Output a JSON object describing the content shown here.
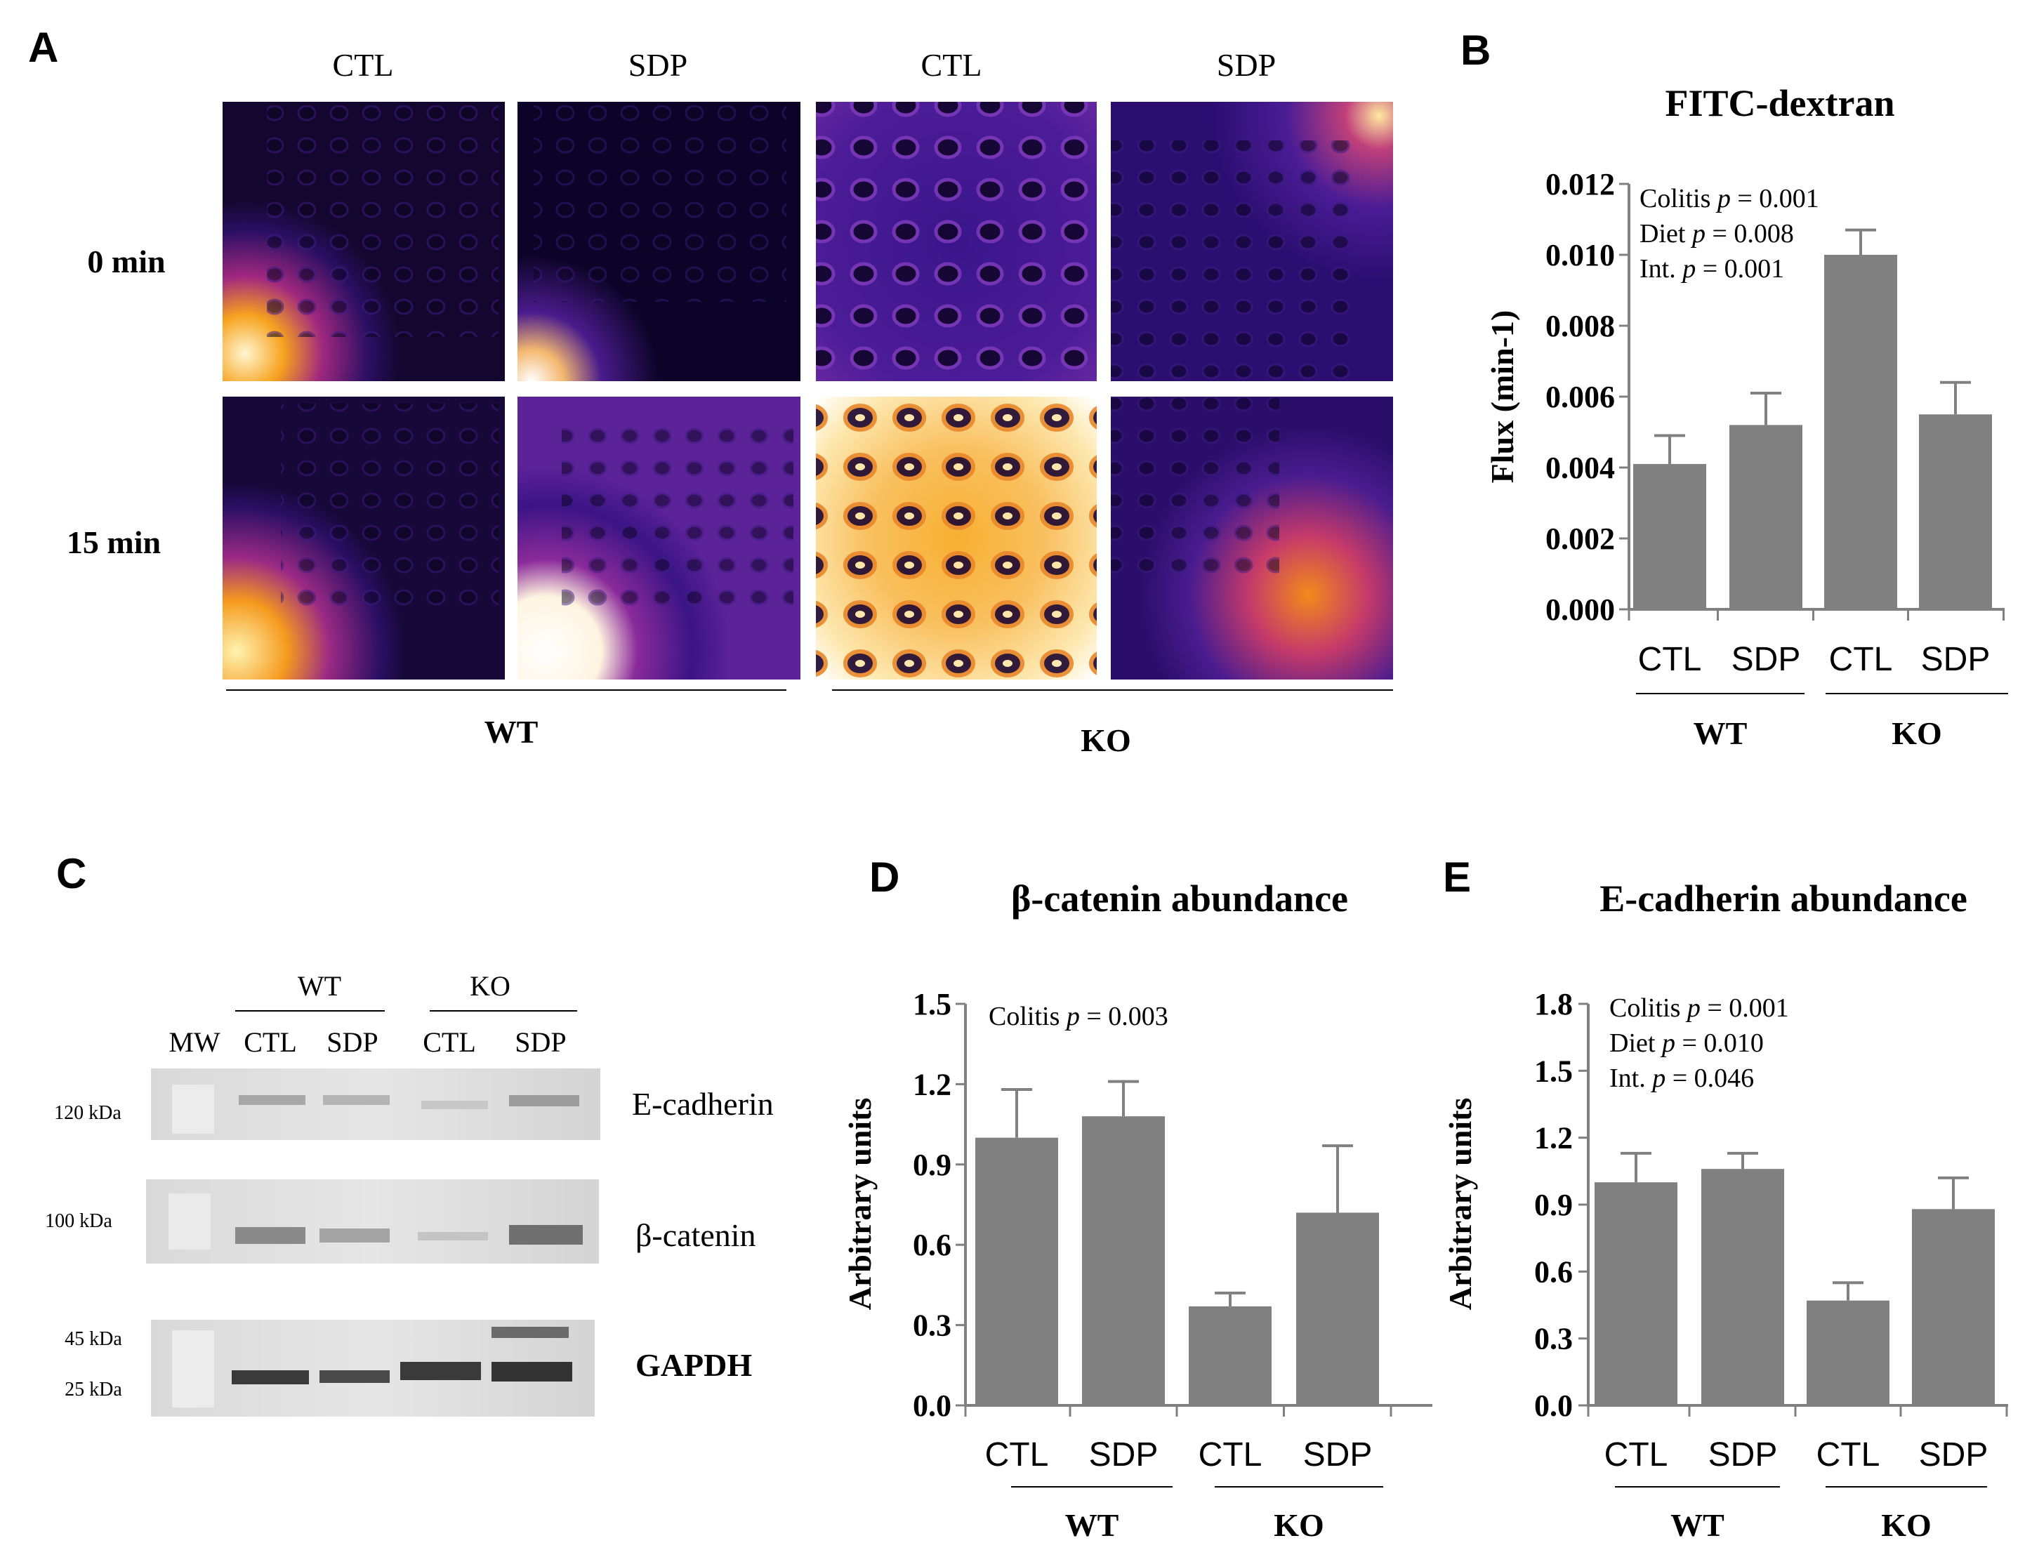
{
  "panel_letters": {
    "a": "A",
    "b": "B",
    "c": "C",
    "d": "D",
    "e": "E"
  },
  "panel_a": {
    "column_labels": [
      "CTL",
      "SDP",
      "CTL",
      "SDP"
    ],
    "row_labels": [
      "0 min",
      "15 min"
    ],
    "group_labels": [
      "WT",
      "KO"
    ],
    "colors": {
      "dark": "#1a0a45",
      "mid": "#5a1f9e",
      "hot": "#f5a623",
      "white": "#fffbe8"
    }
  },
  "panel_c": {
    "group_labels": [
      "WT",
      "KO"
    ],
    "lane_labels": [
      "MW",
      "CTL",
      "SDP",
      "CTL",
      "SDP"
    ],
    "blots": [
      {
        "name": "E-cadherin",
        "markers": [
          "120 kDa"
        ]
      },
      {
        "name": "β-catenin",
        "markers": [
          "100 kDa"
        ]
      },
      {
        "name": "GAPDH",
        "markers": [
          "45 kDa",
          "25 kDa"
        ]
      }
    ]
  },
  "chart_data": [
    {
      "id": "B",
      "type": "bar",
      "title": "FITC-dextran",
      "ylabel": "Flux (min-1)",
      "ylim": [
        0,
        0.012
      ],
      "yticks": [
        "0.000",
        "0.002",
        "0.004",
        "0.006",
        "0.008",
        "0.010",
        "0.012"
      ],
      "categories": [
        "CTL",
        "SDP",
        "CTL",
        "SDP"
      ],
      "groups": [
        "WT",
        "KO"
      ],
      "values": [
        0.0041,
        0.0052,
        0.01,
        0.0055
      ],
      "errors": [
        0.0008,
        0.0009,
        0.0007,
        0.0009
      ],
      "bar_color": "#808080",
      "annotations": [
        {
          "label": "Colitis",
          "p": "p",
          "value": " = 0.001"
        },
        {
          "label": "Diet",
          "p": "p",
          "value": " = 0.008"
        },
        {
          "label": "Int.",
          "p": "p",
          "value": " = 0.001"
        }
      ]
    },
    {
      "id": "D",
      "type": "bar",
      "title": "β-catenin abundance",
      "ylabel": "Arbitrary units",
      "ylim": [
        0,
        1.5
      ],
      "yticks": [
        "0.0",
        "0.3",
        "0.6",
        "0.9",
        "1.2",
        "1.5"
      ],
      "categories": [
        "CTL",
        "SDP",
        "CTL",
        "SDP"
      ],
      "groups": [
        "WT",
        "KO"
      ],
      "values": [
        1.0,
        1.08,
        0.37,
        0.72
      ],
      "errors": [
        0.18,
        0.13,
        0.05,
        0.25
      ],
      "bar_color": "#808080",
      "annotations": [
        {
          "label": "Colitis",
          "p": "p",
          "value": " = 0.003"
        }
      ]
    },
    {
      "id": "E",
      "type": "bar",
      "title": "E-cadherin abundance",
      "ylabel": "Arbitrary units",
      "ylim": [
        0,
        1.8
      ],
      "yticks": [
        "0.0",
        "0.3",
        "0.6",
        "0.9",
        "1.2",
        "1.5",
        "1.8"
      ],
      "categories": [
        "CTL",
        "SDP",
        "CTL",
        "SDP"
      ],
      "groups": [
        "WT",
        "KO"
      ],
      "values": [
        1.0,
        1.06,
        0.47,
        0.88
      ],
      "errors": [
        0.13,
        0.07,
        0.08,
        0.14
      ],
      "bar_color": "#808080",
      "annotations": [
        {
          "label": "Colitis",
          "p": "p",
          "value": " = 0.001"
        },
        {
          "label": "Diet",
          "p": "p",
          "value": " = 0.010"
        },
        {
          "label": "Int.",
          "p": "p",
          "value": " = 0.046"
        }
      ]
    }
  ]
}
